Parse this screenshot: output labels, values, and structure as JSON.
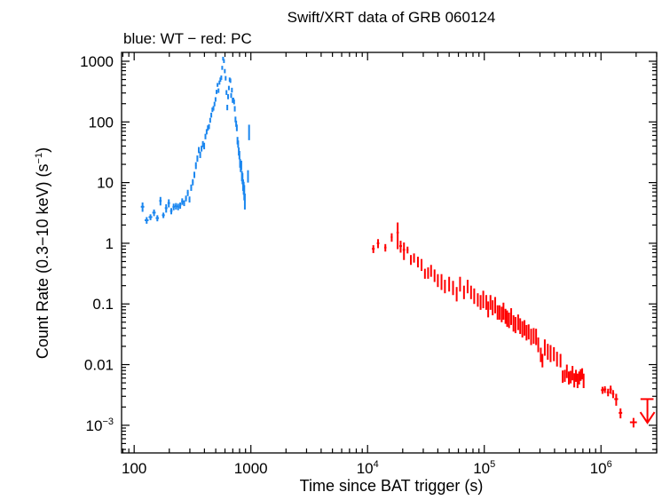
{
  "chart_data": {
    "type": "scatter",
    "title": "Swift/XRT data of GRB 060124",
    "subtitle": "blue: WT − red: PC",
    "xlabel": "Time since BAT trigger (s)",
    "ylabel_main": "Count Rate (0.3−10 keV) (s",
    "ylabel_sup": "−1",
    "ylabel_tail": ")",
    "xscale": "log",
    "yscale": "log",
    "xlim": [
      78,
      3000000
    ],
    "ylim": [
      0.00035,
      1400
    ],
    "x_ticks": [
      {
        "value": 100,
        "label": "100",
        "sup": ""
      },
      {
        "value": 1000,
        "label": "1000",
        "sup": ""
      },
      {
        "value": 10000,
        "label": "10",
        "sup": "4"
      },
      {
        "value": 100000,
        "label": "10",
        "sup": "5"
      },
      {
        "value": 1000000,
        "label": "10",
        "sup": "6"
      }
    ],
    "y_ticks": [
      {
        "value": 1000,
        "label": "1000",
        "sup": ""
      },
      {
        "value": 100,
        "label": "100",
        "sup": ""
      },
      {
        "value": 10,
        "label": "10",
        "sup": ""
      },
      {
        "value": 1,
        "label": "1",
        "sup": ""
      },
      {
        "value": 0.1,
        "label": "0.1",
        "sup": ""
      },
      {
        "value": 0.01,
        "label": "0.01",
        "sup": ""
      },
      {
        "value": 0.001,
        "label": "10",
        "sup": "−3"
      }
    ],
    "colors": {
      "wt": "#1a86ef",
      "pc": "#ff0000",
      "axis": "#000000"
    },
    "series": [
      {
        "name": "WT",
        "color": "#1a86ef",
        "points": [
          [
            118,
            4.0,
            0.7,
            4
          ],
          [
            128,
            2.4,
            0.3,
            5
          ],
          [
            138,
            2.7,
            0.3,
            5
          ],
          [
            148,
            3.2,
            0.4,
            5
          ],
          [
            158,
            2.6,
            0.3,
            5
          ],
          [
            168,
            5.0,
            0.8,
            4
          ],
          [
            178,
            2.9,
            0.3,
            5
          ],
          [
            188,
            3.8,
            0.6,
            5
          ],
          [
            198,
            4.6,
            0.7,
            5
          ],
          [
            208,
            3.4,
            0.4,
            5
          ],
          [
            218,
            4.0,
            0.5,
            5
          ],
          [
            228,
            4.1,
            0.5,
            5
          ],
          [
            238,
            4.0,
            0.5,
            5
          ],
          [
            248,
            4.2,
            0.5,
            5
          ],
          [
            258,
            4.9,
            0.6,
            5
          ],
          [
            268,
            4.6,
            0.5,
            5
          ],
          [
            278,
            5.5,
            0.6,
            5
          ],
          [
            288,
            6.8,
            0.8,
            5
          ],
          [
            298,
            5.3,
            0.6,
            5
          ],
          [
            308,
            8.3,
            1.0,
            5
          ],
          [
            318,
            10.2,
            1.2,
            5
          ],
          [
            328,
            13.5,
            1.6,
            5
          ],
          [
            338,
            19.2,
            2.5,
            5
          ],
          [
            348,
            25.0,
            3.0,
            5
          ],
          [
            358,
            34.6,
            4.0,
            5
          ],
          [
            368,
            28.9,
            3.5,
            5
          ],
          [
            378,
            36.5,
            4.0,
            5
          ],
          [
            388,
            43.3,
            5.0,
            5
          ],
          [
            398,
            40.4,
            5.0,
            5
          ],
          [
            408,
            57.7,
            6.0,
            5
          ],
          [
            418,
            69.2,
            7.0,
            5
          ],
          [
            428,
            79.8,
            8.0,
            5
          ],
          [
            438,
            84.1,
            8.0,
            5
          ],
          [
            448,
            106.9,
            10.0,
            5
          ],
          [
            458,
            130.0,
            12.0,
            5
          ],
          [
            468,
            159.1,
            14.0,
            5
          ],
          [
            478,
            168.4,
            15.0,
            5
          ],
          [
            488,
            197.7,
            17.0,
            5
          ],
          [
            498,
            235.7,
            20.0,
            5
          ],
          [
            508,
            313.6,
            25.0,
            5
          ],
          [
            518,
            408.6,
            30.0,
            5
          ],
          [
            528,
            328.7,
            28.0,
            5
          ],
          [
            538,
            445.9,
            35.0,
            5
          ],
          [
            548,
            500.6,
            40.0,
            5
          ],
          [
            558,
            538.2,
            45.0,
            5
          ],
          [
            568,
            780.8,
            60.0,
            5
          ],
          [
            578,
            1106.8,
            80.0,
            5
          ],
          [
            588,
            1010.1,
            75.0,
            5
          ],
          [
            598,
            689.9,
            55.0,
            5
          ],
          [
            608,
            526.4,
            45.0,
            5
          ],
          [
            618,
            306.3,
            28.0,
            5
          ],
          [
            628,
            173.7,
            18.0,
            5
          ],
          [
            638,
            261.6,
            25.0,
            5
          ],
          [
            648,
            363.4,
            30.0,
            5
          ],
          [
            658,
            499.5,
            40.0,
            5
          ],
          [
            668,
            480.3,
            40.0,
            5
          ],
          [
            678,
            273.8,
            25.0,
            5
          ],
          [
            688,
            335.6,
            30.0,
            5
          ],
          [
            698,
            228.2,
            22.0,
            5
          ],
          [
            708,
            229.2,
            22.0,
            5
          ],
          [
            718,
            214.8,
            20.0,
            5
          ],
          [
            728,
            165.4,
            17.0,
            5
          ],
          [
            738,
            110.3,
            12.0,
            5
          ],
          [
            748,
            94.0,
            11.0,
            5
          ],
          [
            758,
            80.4,
            10.0,
            5
          ],
          [
            768,
            49.6,
            7.0,
            5
          ],
          [
            778,
            43.5,
            6.0,
            5
          ],
          [
            788,
            32.9,
            5.0,
            5
          ],
          [
            798,
            28.7,
            4.5,
            5
          ],
          [
            808,
            21.1,
            3.5,
            5
          ],
          [
            818,
            17.9,
            3.0,
            5
          ],
          [
            828,
            19.5,
            3.5,
            5
          ],
          [
            838,
            13.0,
            2.5,
            5
          ],
          [
            848,
            11.9,
            2.5,
            5
          ],
          [
            858,
            9.3,
            2.0,
            5
          ],
          [
            868,
            8.3,
            2.0,
            5
          ],
          [
            878,
            7.1,
            2.0,
            5
          ],
          [
            888,
            5.1,
            1.5,
            5
          ],
          [
            945,
            13.0,
            3.0,
            5
          ],
          [
            965,
            70.0,
            20.0,
            5
          ]
        ]
      },
      {
        "name": "PC",
        "color": "#ff0000",
        "upper_limit": {
          "x": 2500000,
          "y": 0.0027,
          "y_to": 0.0011,
          "x_err": 320000
        },
        "points": [
          [
            11200,
            0.81,
            0.12,
            300
          ],
          [
            12300,
            1.0,
            0.17,
            300
          ],
          [
            14200,
            0.85,
            0.12,
            300
          ],
          [
            16100,
            1.26,
            0.2,
            300
          ],
          [
            18100,
            1.5,
            0.7,
            400
          ],
          [
            19200,
            0.9,
            0.2,
            500
          ],
          [
            20500,
            0.78,
            0.25,
            500
          ],
          [
            22000,
            0.78,
            0.1,
            400
          ],
          [
            23500,
            0.54,
            0.1,
            400
          ],
          [
            25000,
            0.58,
            0.1,
            400
          ],
          [
            27000,
            0.5,
            0.1,
            400
          ],
          [
            29000,
            0.45,
            0.1,
            400
          ],
          [
            31000,
            0.32,
            0.06,
            400
          ],
          [
            33000,
            0.33,
            0.07,
            400
          ],
          [
            35000,
            0.36,
            0.08,
            400
          ],
          [
            37500,
            0.3,
            0.07,
            400
          ],
          [
            40000,
            0.25,
            0.06,
            400
          ],
          [
            43000,
            0.24,
            0.07,
            400
          ],
          [
            46000,
            0.2,
            0.05,
            400
          ],
          [
            50000,
            0.22,
            0.06,
            400
          ],
          [
            54000,
            0.19,
            0.05,
            400
          ],
          [
            58000,
            0.15,
            0.04,
            500
          ],
          [
            62000,
            0.22,
            0.06,
            500
          ],
          [
            67000,
            0.16,
            0.04,
            500
          ],
          [
            72000,
            0.2,
            0.05,
            500
          ],
          [
            77000,
            0.16,
            0.04,
            500
          ],
          [
            82000,
            0.14,
            0.04,
            500
          ],
          [
            88000,
            0.12,
            0.03,
            500
          ],
          [
            93000,
            0.11,
            0.03,
            500
          ],
          [
            98000,
            0.125,
            0.04,
            500
          ],
          [
            104000,
            0.11,
            0.03,
            500
          ],
          [
            108000,
            0.085,
            0.025,
            500
          ],
          [
            113000,
            0.11,
            0.03,
            500
          ],
          [
            118000,
            0.09,
            0.025,
            500
          ],
          [
            124000,
            0.1,
            0.03,
            500
          ],
          [
            130000,
            0.075,
            0.02,
            500
          ],
          [
            135000,
            0.075,
            0.02,
            500
          ],
          [
            141000,
            0.07,
            0.02,
            500
          ],
          [
            146000,
            0.08,
            0.025,
            500
          ],
          [
            152000,
            0.065,
            0.018,
            500
          ],
          [
            157000,
            0.06,
            0.018,
            500
          ],
          [
            163000,
            0.056,
            0.016,
            500
          ],
          [
            170000,
            0.065,
            0.02,
            500
          ],
          [
            178000,
            0.05,
            0.015,
            600
          ],
          [
            185000,
            0.047,
            0.014,
            600
          ],
          [
            195000,
            0.052,
            0.015,
            600
          ],
          [
            203000,
            0.045,
            0.013,
            600
          ],
          [
            212000,
            0.04,
            0.012,
            600
          ],
          [
            221000,
            0.042,
            0.012,
            600
          ],
          [
            230000,
            0.035,
            0.01,
            600
          ],
          [
            240000,
            0.036,
            0.01,
            600
          ],
          [
            252000,
            0.03,
            0.009,
            600
          ],
          [
            265000,
            0.031,
            0.009,
            600
          ],
          [
            278000,
            0.03,
            0.009,
            600
          ],
          [
            290000,
            0.022,
            0.006,
            800
          ],
          [
            305000,
            0.015,
            0.004,
            1500
          ],
          [
            315000,
            0.012,
            0.003,
            1500
          ],
          [
            330000,
            0.02,
            0.006,
            1500
          ],
          [
            350000,
            0.017,
            0.005,
            1500
          ],
          [
            370000,
            0.016,
            0.005,
            1500
          ],
          [
            395000,
            0.0154,
            0.004,
            1500
          ],
          [
            420000,
            0.0128,
            0.0035,
            1500
          ],
          [
            450000,
            0.012,
            0.003,
            1500
          ],
          [
            470000,
            0.0065,
            0.0015,
            2000
          ],
          [
            490000,
            0.0067,
            0.0015,
            2000
          ],
          [
            510000,
            0.008,
            0.002,
            2000
          ],
          [
            530000,
            0.0062,
            0.0015,
            2000
          ],
          [
            550000,
            0.0064,
            0.0015,
            2000
          ],
          [
            570000,
            0.0075,
            0.002,
            2000
          ],
          [
            590000,
            0.0057,
            0.0015,
            2000
          ],
          [
            610000,
            0.0067,
            0.0015,
            2000
          ],
          [
            630000,
            0.0056,
            0.0015,
            2000
          ],
          [
            650000,
            0.0062,
            0.0015,
            2000
          ],
          [
            670000,
            0.0069,
            0.0015,
            2000
          ],
          [
            690000,
            0.0072,
            0.0015,
            2000
          ],
          [
            710000,
            0.0056,
            0.0015,
            2000
          ],
          [
            1030000,
            0.0038,
            0.0005,
            30000
          ],
          [
            1080000,
            0.0039,
            0.0005,
            30000
          ],
          [
            1150000,
            0.0035,
            0.0005,
            30000
          ],
          [
            1210000,
            0.0039,
            0.0006,
            30000
          ],
          [
            1270000,
            0.0033,
            0.0005,
            30000
          ],
          [
            1350000,
            0.0027,
            0.0006,
            50000
          ],
          [
            1470000,
            0.0016,
            0.0003,
            50000
          ],
          [
            1900000,
            0.00112,
            0.0002,
            130000
          ]
        ]
      }
    ]
  }
}
